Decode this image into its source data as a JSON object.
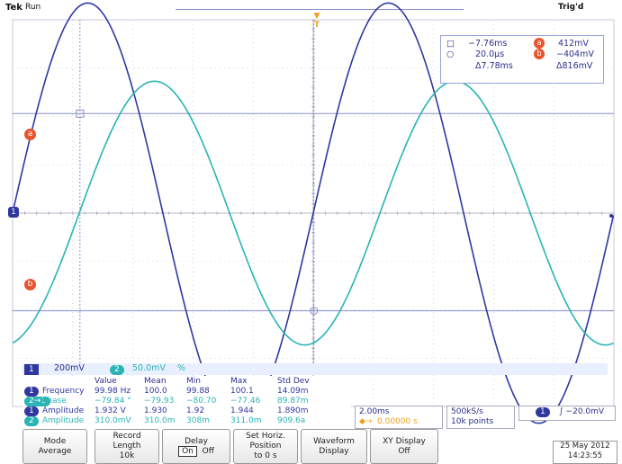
{
  "header": {
    "brand": "Tek",
    "run_state": "Run",
    "trigger_state": "Trig'd"
  },
  "markers": {
    "ch1": "1",
    "cursor_a": "a",
    "cursor_b": "b",
    "trigger_pos": "T"
  },
  "cursor_readout": {
    "row1_left": "−7.76ms",
    "row1_badge": "a",
    "row1_right": "412mV",
    "row2_left": "20.0µs",
    "row2_badge": "b",
    "row2_right": "−404mV",
    "delta_time": "Δ7.78ms",
    "delta_volt": "Δ816mV"
  },
  "status": {
    "ch1_badge": "1",
    "ch1_scale": "200mV",
    "ch2_badge": "2",
    "ch2_scale": "50.0mV",
    "ch2_suffix": "%"
  },
  "measurements": {
    "headers": [
      "Value",
      "Mean",
      "Min",
      "Max",
      "Std Dev"
    ],
    "rows": [
      {
        "badge": "1",
        "label": "Frequency",
        "cells": [
          "99.98 Hz",
          "100.0",
          "99.88",
          "100.1",
          "14.09m"
        ],
        "color": "#3038a0"
      },
      {
        "badge": "2→1",
        "label": "Phase",
        "cells": [
          "−79.84 °",
          "−79.93",
          "−80.70",
          "−77.46",
          "89.87m"
        ],
        "color": "#2ab4b4"
      },
      {
        "badge": "1",
        "label": "Amplitude",
        "cells": [
          "1.932 V",
          "1.930",
          "1.92",
          "1.944",
          "1.890m"
        ],
        "color": "#3038a0"
      },
      {
        "badge": "2",
        "label": "Amplitude",
        "cells": [
          "310.0mV",
          "310.0m",
          "308m",
          "311.0m",
          "909.6a"
        ],
        "color": "#2ab4b4"
      }
    ]
  },
  "timebase": {
    "scale": "2.00ms",
    "position": "0.00000 s",
    "sample_rate": "500kS/s",
    "record": "10k points",
    "trigger_badge": "1",
    "trigger_level": "∫ −20.0mV"
  },
  "softkeys": {
    "mode_label": "Mode",
    "mode_value": "Average",
    "record_label": "Record",
    "record_label2": "Length",
    "record_value": "10k",
    "delay_label": "Delay",
    "delay_on": "On",
    "delay_off": "Off",
    "horiz_label": "Set Horiz.",
    "horiz_label2": "Position",
    "horiz_value": "to 0 s",
    "waveform_label": "Waveform",
    "waveform_value": "Display",
    "xy_label": "XY Display",
    "xy_value": "Off"
  },
  "datetime": {
    "date": "25 May 2012",
    "time": "14:23:55"
  },
  "colors": {
    "ch1": "#3038a0",
    "ch2": "#2ab4b4",
    "cursor": "#8a8ec8",
    "marker": "#e8542c",
    "trigger": "#f0a020"
  },
  "waveforms": {
    "ch1": {
      "amplitude_v": 0.966,
      "frequency_hz": 99.98,
      "volts_per_div": 0.2
    },
    "ch2": {
      "amplitude_v": 0.155,
      "frequency_hz": 99.98,
      "volts_per_div": 0.05,
      "phase_deg": -79.84
    },
    "time_per_div_ms": 2.0,
    "divisions_x": 10,
    "divisions_y": 8
  }
}
